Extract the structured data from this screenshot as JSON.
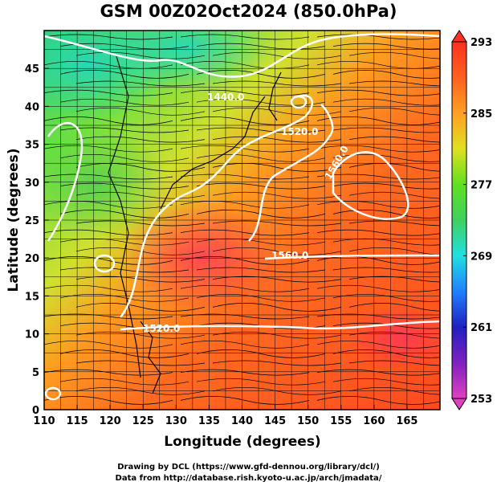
{
  "title": "GSM 00Z02Oct2024 (850.0hPa)",
  "xlabel": "Longitude (degrees)",
  "ylabel": "Latitude  (degrees)",
  "x_ticks": [
    "110",
    "115",
    "120",
    "125",
    "130",
    "135",
    "140",
    "145",
    "150",
    "155",
    "160",
    "165"
  ],
  "y_ticks": [
    "0",
    "5",
    "10",
    "15",
    "20",
    "25",
    "30",
    "35",
    "40",
    "45"
  ],
  "colorbar": {
    "ticks": [
      "293",
      "285",
      "277",
      "269",
      "261",
      "253"
    ],
    "min": 253,
    "max": 293,
    "stops": [
      "#e040c0",
      "#8020c0",
      "#2020c0",
      "#2080ff",
      "#20e0e0",
      "#40d060",
      "#60e020",
      "#e0e020",
      "#ffa020",
      "#ff6020",
      "#ff3020"
    ]
  },
  "contours": [
    {
      "label": "1440.0"
    },
    {
      "label": "1520.0"
    },
    {
      "label": "1520.0"
    },
    {
      "label": "1560.0"
    },
    {
      "label": "1560.0"
    }
  ],
  "footer": {
    "line1": "Drawing by DCL (https://www.gfd-dennou.org/library/dcl/)",
    "line2": "Data from http://database.rish.kyoto-u.ac.jp/arch/jmadata/"
  },
  "chart_data": {
    "type": "heatmap",
    "title": "GSM 00Z02Oct2024 (850.0hPa)",
    "xlabel": "Longitude (degrees)",
    "ylabel": "Latitude  (degrees)",
    "xlim": [
      110,
      170
    ],
    "ylim": [
      0,
      50
    ],
    "colorbar_range": [
      253,
      293
    ],
    "colorbar_ticks": [
      293,
      285,
      277,
      269,
      261,
      253
    ],
    "contour_labels": [
      "1440.0",
      "1520.0",
      "1520.0",
      "1560.0",
      "1560.0"
    ]
  }
}
